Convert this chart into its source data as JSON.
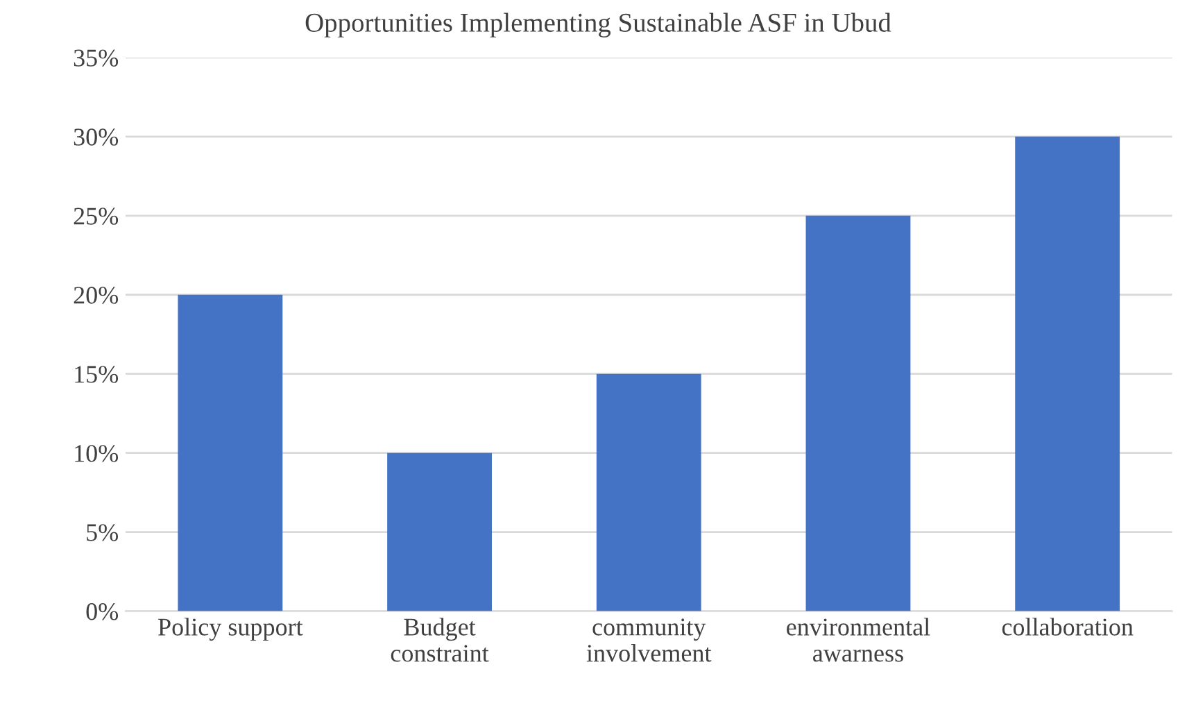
{
  "chart_data": {
    "type": "bar",
    "title": "Opportunities Implementing Sustainable ASF in Ubud",
    "categories": [
      "Policy support",
      "Budget\nconstraint",
      "community\ninvolvement",
      "environmental\nawarness",
      "collaboration"
    ],
    "values": [
      20,
      10,
      15,
      25,
      30
    ],
    "color": "#4472c4",
    "ylim": [
      0,
      35
    ],
    "yticks": [
      {
        "value": 0,
        "label": "0%"
      },
      {
        "value": 5,
        "label": "5%"
      },
      {
        "value": 10,
        "label": "10%"
      },
      {
        "value": 15,
        "label": "15%"
      },
      {
        "value": 20,
        "label": "20%"
      },
      {
        "value": 25,
        "label": "25%"
      },
      {
        "value": 30,
        "label": "30%"
      },
      {
        "value": 35,
        "label": "35%"
      }
    ],
    "grid": "y"
  }
}
